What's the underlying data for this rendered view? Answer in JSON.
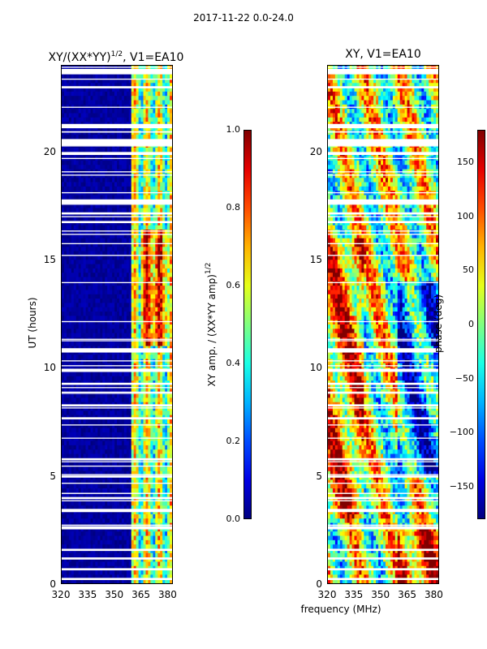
{
  "suptitle": "2017-11-22 0.0-24.0",
  "chart_data": [
    {
      "type": "heatmap",
      "title_main": "XY/(XX*YY)",
      "title_exp": "1/2",
      "title_suffix": ", V1=EA10",
      "xlabel": "",
      "ylabel": "UT (hours)",
      "xlim": [
        320,
        383
      ],
      "ylim": [
        0,
        24
      ],
      "xticks": [
        "320",
        "335",
        "350",
        "365",
        "380"
      ],
      "xtick_values": [
        320,
        335,
        350,
        365,
        380
      ],
      "yticks": [
        "0",
        "5",
        "10",
        "15",
        "20"
      ],
      "ytick_values": [
        0,
        5,
        10,
        15,
        20
      ],
      "colormap": "jet",
      "colorbar": {
        "label_main": "XY amp. / (XX*YY amp)",
        "label_exp": "1/2",
        "range": [
          0.0,
          1.0
        ],
        "ticks": [
          "0.0",
          "0.2",
          "0.4",
          "0.6",
          "0.8",
          "1.0"
        ],
        "tick_values": [
          0.0,
          0.2,
          0.4,
          0.6,
          0.8,
          1.0
        ]
      }
    },
    {
      "type": "heatmap",
      "title_main": "XY, V1=EA10",
      "xlabel": "frequency (MHz)",
      "ylabel": "",
      "xlim": [
        320,
        383
      ],
      "ylim": [
        0,
        24
      ],
      "xticks": [
        "320",
        "335",
        "350",
        "365",
        "380"
      ],
      "xtick_values": [
        320,
        335,
        350,
        365,
        380
      ],
      "yticks": [
        "0",
        "5",
        "10",
        "15",
        "20"
      ],
      "ytick_values": [
        0,
        5,
        10,
        15,
        20
      ],
      "colormap": "jet",
      "colorbar": {
        "label_main": "phase (deg)",
        "range": [
          -180,
          180
        ],
        "ticks": [
          "−150",
          "−100",
          "−50",
          "0",
          "50",
          "100",
          "150"
        ],
        "tick_values": [
          -150,
          -100,
          -50,
          0,
          50,
          100,
          150
        ]
      }
    }
  ]
}
